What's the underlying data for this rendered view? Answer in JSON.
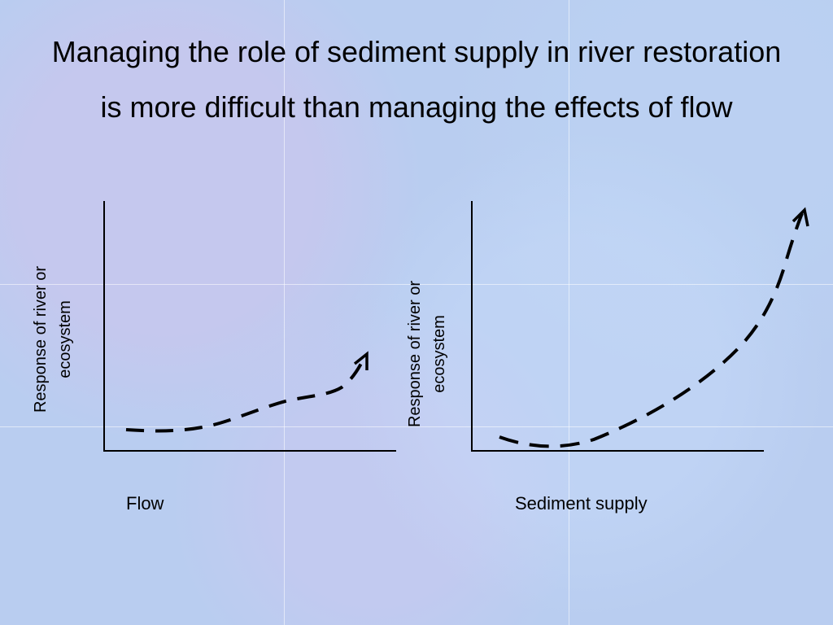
{
  "slide": {
    "title_lines": [
      "Managing the role of sediment supply in river restoration",
      "is more difficult than managing the effects of flow"
    ]
  },
  "panels": [
    {
      "ylabel_lines": [
        "Response of river or",
        "ecosystem"
      ],
      "xlabel": "Flow",
      "curve": "gradual-rise-dashed-arrow"
    },
    {
      "ylabel_lines": [
        "Response of river or",
        "ecosystem"
      ],
      "xlabel": "Sediment supply",
      "curve": "steep-rise-dashed-arrow"
    }
  ],
  "colors": {
    "background": "#b9cdf0",
    "ink": "#000000"
  }
}
